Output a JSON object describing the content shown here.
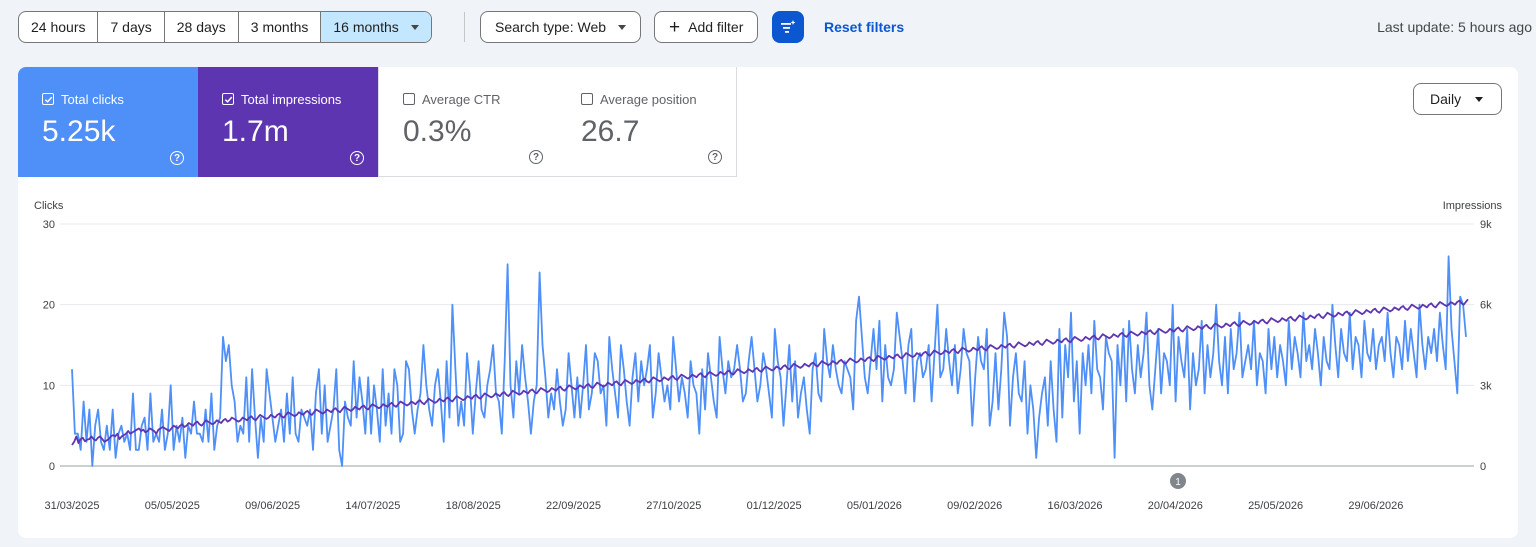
{
  "toolbar": {
    "ranges": [
      {
        "label": "24 hours",
        "selected": false
      },
      {
        "label": "7 days",
        "selected": false
      },
      {
        "label": "28 days",
        "selected": false
      },
      {
        "label": "3 months",
        "selected": false
      },
      {
        "label": "16 months",
        "selected": true
      }
    ],
    "search_type_label": "Search type: Web",
    "add_filter_label": "Add filter",
    "reset_filters_label": "Reset filters",
    "last_update": "Last update: 5 hours ago"
  },
  "metrics": {
    "clicks": {
      "label": "Total clicks",
      "value": "5.25k",
      "checked": true,
      "color": "#4e8ff8"
    },
    "impressions": {
      "label": "Total impressions",
      "value": "1.7m",
      "checked": true,
      "color": "#5e35b1"
    },
    "ctr": {
      "label": "Average CTR",
      "value": "0.3%",
      "checked": false
    },
    "position": {
      "label": "Average position",
      "value": "26.7",
      "checked": false
    }
  },
  "granularity": "Daily",
  "chart_data": {
    "type": "line",
    "left_axis_title": "Clicks",
    "right_axis_title": "Impressions",
    "left_ticks": [
      "30",
      "20",
      "10",
      "0"
    ],
    "right_ticks": [
      "9k",
      "6k",
      "3k",
      "0"
    ],
    "ylim_left": [
      0,
      30
    ],
    "ylim_right": [
      0,
      9000
    ],
    "x_start": "31/03/2025",
    "x_tick_labels": [
      "31/03/2025",
      "05/05/2025",
      "09/06/2025",
      "14/07/2025",
      "18/08/2025",
      "22/09/2025",
      "27/10/2025",
      "01/12/2025",
      "05/01/2026",
      "09/02/2026",
      "16/03/2026",
      "20/04/2026",
      "25/05/2026",
      "29/06/2026"
    ],
    "annotation": {
      "label": "1",
      "date": "20/04/2026"
    },
    "grid": true,
    "series": [
      {
        "name": "Clicks",
        "axis": "left",
        "color": "#4e8ff8",
        "values": [
          12,
          4,
          4,
          2,
          8,
          3,
          7,
          0,
          5,
          7,
          3,
          2,
          5,
          2,
          7,
          1,
          4,
          5,
          3,
          4,
          2,
          9,
          2,
          2,
          5,
          6,
          2,
          9,
          3,
          4,
          3,
          7,
          2,
          4,
          10,
          2,
          5,
          3,
          6,
          1,
          5,
          4,
          8,
          4,
          4,
          3,
          7,
          3,
          9,
          2,
          5,
          6,
          16,
          13,
          15,
          10,
          8,
          3,
          5,
          4,
          11,
          3,
          12,
          6,
          1,
          6,
          3,
          12,
          9,
          6,
          3,
          5,
          7,
          3,
          9,
          4,
          11,
          4,
          3,
          7,
          6,
          5,
          7,
          2,
          9,
          12,
          4,
          10,
          3,
          5,
          7,
          12,
          2,
          0,
          8,
          6,
          5,
          13,
          6,
          11,
          8,
          4,
          11,
          4,
          10,
          7,
          3,
          12,
          5,
          9,
          4,
          12,
          10,
          3,
          4,
          13,
          12,
          7,
          4,
          7,
          9,
          15,
          10,
          7,
          5,
          10,
          12,
          8,
          3,
          13,
          6,
          20,
          12,
          5,
          8,
          5,
          14,
          10,
          4,
          9,
          13,
          7,
          6,
          10,
          12,
          15,
          9,
          8,
          4,
          13,
          25,
          10,
          6,
          13,
          9,
          15,
          11,
          8,
          4,
          8,
          10,
          24,
          15,
          11,
          6,
          9,
          7,
          12,
          8,
          5,
          7,
          14,
          10,
          6,
          11,
          6,
          10,
          15,
          7,
          9,
          14,
          13,
          9,
          10,
          5,
          16,
          12,
          9,
          6,
          15,
          12,
          8,
          5,
          11,
          14,
          8,
          13,
          10,
          12,
          15,
          6,
          9,
          14,
          11,
          8,
          10,
          7,
          16,
          12,
          8,
          11,
          9,
          6,
          13,
          10,
          9,
          4,
          12,
          7,
          14,
          11,
          8,
          6,
          16,
          12,
          9,
          13,
          11,
          12,
          15,
          12,
          8,
          9,
          13,
          16,
          12,
          8,
          10,
          14,
          12,
          9,
          6,
          17,
          13,
          11,
          5,
          10,
          15,
          8,
          13,
          6,
          9,
          11,
          7,
          4,
          12,
          14,
          9,
          8,
          17,
          13,
          11,
          15,
          12,
          10,
          9,
          13,
          12,
          11,
          7,
          18,
          21,
          16,
          11,
          9,
          13,
          17,
          12,
          18,
          8,
          15,
          11,
          10,
          12,
          19,
          16,
          13,
          9,
          15,
          17,
          8,
          13,
          14,
          11,
          12,
          15,
          8,
          14,
          20,
          11,
          12,
          17,
          13,
          10,
          15,
          9,
          12,
          17,
          14,
          13,
          5,
          11,
          16,
          13,
          12,
          17,
          5,
          8,
          14,
          7,
          12,
          19,
          16,
          5,
          11,
          14,
          9,
          8,
          13,
          4,
          10,
          7,
          1,
          6,
          9,
          11,
          5,
          13,
          7,
          3,
          17,
          6,
          15,
          11,
          19,
          8,
          13,
          4,
          14,
          10,
          15,
          9,
          18,
          12,
          11,
          7,
          16,
          14,
          13,
          1,
          15,
          10,
          17,
          8,
          18,
          12,
          9,
          15,
          11,
          14,
          19,
          10,
          7,
          12,
          17,
          9,
          14,
          13,
          10,
          20,
          8,
          16,
          13,
          11,
          17,
          7,
          14,
          10,
          12,
          18,
          9,
          15,
          11,
          14,
          20,
          13,
          10,
          16,
          9,
          17,
          12,
          14,
          19,
          11,
          13,
          15,
          12,
          18,
          10,
          14,
          13,
          9,
          17,
          12,
          16,
          11,
          15,
          13,
          10,
          18,
          12,
          16,
          14,
          11,
          19,
          13,
          15,
          12,
          17,
          14,
          10,
          16,
          13,
          12,
          20,
          15,
          11,
          17,
          14,
          13,
          19,
          12,
          16,
          15,
          11,
          18,
          14,
          13,
          17,
          12,
          15,
          16,
          13,
          19,
          14,
          11,
          16,
          15,
          12,
          18,
          13,
          17,
          14,
          11,
          20,
          15,
          12,
          16,
          14,
          17,
          13,
          19,
          15,
          12,
          26,
          17,
          13,
          9,
          21,
          20,
          16
        ],
        "note": "x distributed evenly from 31/03/2025 across the visible span"
      },
      {
        "name": "Impressions",
        "axis": "right",
        "color": "#5e35b1",
        "values": [
          780,
          900,
          1100,
          850,
          1000,
          1050,
          920,
          980,
          1000,
          1100,
          1000,
          950,
          1050,
          1100,
          1000,
          900,
          950,
          1000,
          1100,
          1150,
          1100,
          1200,
          1000,
          1100,
          1150,
          1200,
          1300,
          1200,
          1250,
          1300,
          1350,
          1400,
          1300,
          1350,
          1250,
          1300,
          1400,
          1350,
          1300,
          1200,
          1350,
          1400,
          1450,
          1400,
          1350,
          1300,
          1400,
          1500,
          1450,
          1400,
          1500,
          1550,
          1450,
          1500,
          1600,
          1550,
          1500,
          1600,
          1650,
          1550,
          1500,
          1600,
          1700,
          1650,
          1600,
          1550,
          1600,
          1700,
          1650,
          1600,
          1700,
          1750,
          1650,
          1700,
          1800,
          1750,
          1700,
          1650,
          1700,
          1800,
          1750,
          1700,
          1800,
          1850,
          1750,
          1700,
          1800,
          1900,
          1850,
          1800,
          1750,
          1800,
          1900,
          1850,
          1800,
          1900,
          1950,
          1850,
          1800,
          1900,
          2000,
          1950,
          1900,
          1850,
          1900,
          2000,
          1950,
          1900,
          2000,
          2050,
          1950,
          1900,
          2000,
          2100,
          2050,
          2000,
          1950,
          2000,
          2100,
          2050,
          2000,
          2100,
          2150,
          2050,
          2000,
          2100,
          2200,
          2150,
          2100,
          2050,
          2100,
          2200,
          2150,
          2100,
          2200,
          2250,
          2150,
          2100,
          2200,
          2300,
          2250,
          2200,
          2150,
          2200,
          2300,
          2250,
          2200,
          2300,
          2350,
          2250,
          2200,
          2300,
          2400,
          2350,
          2300,
          2250,
          2300,
          2400,
          2350,
          2300,
          2400,
          2450,
          2350,
          2300,
          2400,
          2500,
          2450,
          2400,
          2350,
          2400,
          2500,
          2450,
          2400,
          2500,
          2550,
          2450,
          2400,
          2500,
          2600,
          2550,
          2500,
          2450,
          2500,
          2600,
          2550,
          2500,
          2600,
          2650,
          2550,
          2500,
          2600,
          2700,
          2650,
          2600,
          2550,
          2600,
          2700,
          2650,
          2600,
          2700,
          2750,
          2650,
          2600,
          2700,
          2800,
          2750,
          2700,
          2650,
          2700,
          2800,
          2750,
          2700,
          2800,
          2850,
          2750,
          2700,
          2800,
          2900,
          2850,
          2800,
          2750,
          2800,
          2900,
          2850,
          2800,
          2900,
          2950,
          2850,
          2800,
          2900,
          3000,
          2950,
          2900,
          2850,
          2900,
          3000,
          2950,
          2900,
          3000,
          3050,
          2950,
          2900,
          3000,
          3100,
          3050,
          3000,
          2950,
          3000,
          3100,
          3050,
          3000,
          3100,
          3150,
          3050,
          3000,
          3100,
          3200,
          3150,
          3100,
          3050,
          3100,
          3200,
          3150,
          3100,
          3200,
          3250,
          3150,
          3100,
          3200,
          3300,
          3250,
          3200,
          3150,
          3200,
          3300,
          3250,
          3200,
          3300,
          3350,
          3250,
          3200,
          3300,
          3400,
          3350,
          3300,
          3250,
          3300,
          3400,
          3350,
          3300,
          3400,
          3450,
          3350,
          3300,
          3400,
          3500,
          3450,
          3400,
          3350,
          3400,
          3500,
          3450,
          3400,
          3500,
          3550,
          3450,
          3400,
          3500,
          3600,
          3550,
          3500,
          3450,
          3500,
          3600,
          3550,
          3500,
          3600,
          3650,
          3550,
          3500,
          3600,
          3700,
          3650,
          3600,
          3550,
          3600,
          3700,
          3650,
          3600,
          3700,
          3750,
          3650,
          3600,
          3700,
          3800,
          3750,
          3700,
          3650,
          3700,
          3800,
          3750,
          3700,
          3800,
          3850,
          3750,
          3700,
          3800,
          3900,
          3850,
          3800,
          3750,
          3800,
          3900,
          3850,
          3800,
          3900,
          3950,
          3850,
          3800,
          3900,
          4000,
          3950,
          3900,
          3850,
          3900,
          4000,
          3950,
          3900,
          4000,
          4050,
          3950,
          3900,
          4000,
          4100,
          4050,
          4000,
          3950,
          4000,
          4100,
          4050,
          4000,
          4100,
          4150,
          4050,
          4000,
          4100,
          4200,
          4150,
          4100,
          4050,
          4100,
          4200,
          4150,
          4100,
          4200,
          4250,
          4150,
          4100,
          4200,
          4300,
          4250,
          4200,
          4150,
          4200,
          4300,
          4250,
          4200,
          4300,
          4350,
          4250,
          4200,
          4300,
          4400,
          4350,
          4300,
          4250,
          4300,
          4400,
          4350,
          4300,
          4400,
          4450,
          4350,
          4300,
          4400,
          4500,
          4450,
          4400,
          4350,
          4400,
          4500,
          4450,
          4400,
          4500,
          4550,
          4450,
          4400,
          4500,
          4600,
          4550,
          4500,
          4450,
          4500,
          4600,
          4550,
          4500,
          4600,
          4650,
          4550,
          4500,
          4600,
          4700,
          4650,
          4600,
          4550,
          4600,
          4700,
          4650,
          4600,
          4700,
          4750,
          4650,
          4600,
          4700,
          4800,
          4750,
          4700,
          4650,
          4700,
          4800,
          4750,
          4700,
          4800,
          4850,
          4750,
          4700,
          4800,
          4900,
          4850,
          4800,
          4750,
          4800,
          4900,
          4850,
          4800,
          4900,
          4950,
          4850,
          4800,
          4900,
          5000,
          4950,
          4900,
          4850,
          4900,
          5000,
          4950,
          4900,
          5000,
          5050,
          4950,
          4900,
          5000,
          5100,
          5050,
          5000,
          4950,
          5000,
          5100,
          5050,
          5000,
          5100,
          5150,
          5050,
          5000,
          5100,
          5200,
          5150,
          5100,
          5050,
          5100,
          5200,
          5150,
          5100,
          5200,
          5250,
          5150,
          5100,
          5200,
          5300,
          5250,
          5200,
          5150,
          5200,
          5300,
          5250,
          5200,
          5300,
          5350,
          5250,
          5200,
          5300,
          5400,
          5350,
          5300,
          5250,
          5300,
          5400,
          5350,
          5300,
          5400,
          5450,
          5350,
          5300,
          5400,
          5500,
          5450,
          5400,
          5350,
          5400,
          5500,
          5450,
          5400,
          5500,
          5550,
          5450,
          5400,
          5500,
          5600,
          5550,
          5500,
          5450,
          5500,
          5600,
          5550,
          5500,
          5600,
          5650,
          5550,
          5500,
          5600,
          5700,
          5650,
          5600,
          5550,
          5600,
          5700,
          5650,
          5600,
          5700,
          5750,
          5650,
          5600,
          5700,
          5800,
          5750,
          5700,
          5650,
          5700,
          5800,
          5750,
          5700,
          5800,
          5850,
          5750,
          5700,
          5800,
          5900,
          5850,
          5800,
          5750,
          5800,
          5900,
          5850,
          5800,
          5900,
          5950,
          5850,
          5800,
          5900,
          6000,
          5950,
          5900,
          5850,
          5900,
          6000,
          5950,
          5900,
          6000,
          6050,
          5950,
          5900,
          6000,
          6100,
          6050,
          6000,
          5950,
          6000,
          6100,
          6050,
          6000,
          6100,
          6150,
          6050,
          6000,
          6100,
          6200
        ],
        "note": "x distributed evenly from 31/03/2025 across the visible span"
      }
    ]
  }
}
